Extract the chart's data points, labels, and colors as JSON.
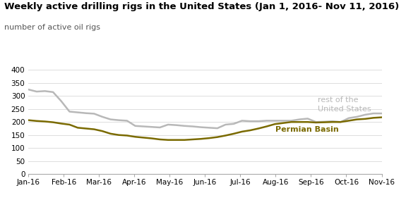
{
  "title": "Weekly active drilling rigs in the United States (Jan 1, 2016- Nov 11, 2016)",
  "subtitle": "number of active oil rigs",
  "x_labels": [
    "Jan-16",
    "Feb-16",
    "Mar-16",
    "Apr-16",
    "May-16",
    "Jun-16",
    "Jul-16",
    "Aug-16",
    "Sep-16",
    "Oct-16",
    "Nov-16"
  ],
  "ylim": [
    0,
    400
  ],
  "yticks": [
    0,
    50,
    100,
    150,
    200,
    250,
    300,
    350,
    400
  ],
  "rest_us_color": "#b8b8b8",
  "permian_color": "#7a6a00",
  "rest_us_label": "rest of the\nUnited States",
  "permian_label": "Permian Basin",
  "background_color": "#ffffff",
  "rest_us_data": [
    325,
    317,
    319,
    315,
    280,
    240,
    237,
    234,
    232,
    220,
    210,
    207,
    205,
    185,
    183,
    181,
    179,
    190,
    188,
    185,
    183,
    180,
    178,
    176,
    190,
    193,
    205,
    203,
    203,
    205,
    205,
    205,
    205,
    210,
    213,
    200,
    201,
    203,
    200,
    215,
    220,
    228,
    233,
    233
  ],
  "permian_data": [
    207,
    204,
    202,
    199,
    194,
    190,
    178,
    175,
    172,
    165,
    155,
    150,
    148,
    143,
    140,
    137,
    133,
    131,
    131,
    131,
    133,
    135,
    138,
    142,
    148,
    155,
    163,
    168,
    175,
    183,
    192,
    196,
    200,
    200,
    200,
    198,
    199,
    200,
    200,
    205,
    210,
    212,
    216,
    218
  ],
  "n_points": 44,
  "title_fontsize": 9.5,
  "subtitle_fontsize": 8,
  "axis_fontsize": 7.5,
  "label_fontsize": 8,
  "line_width": 1.8
}
